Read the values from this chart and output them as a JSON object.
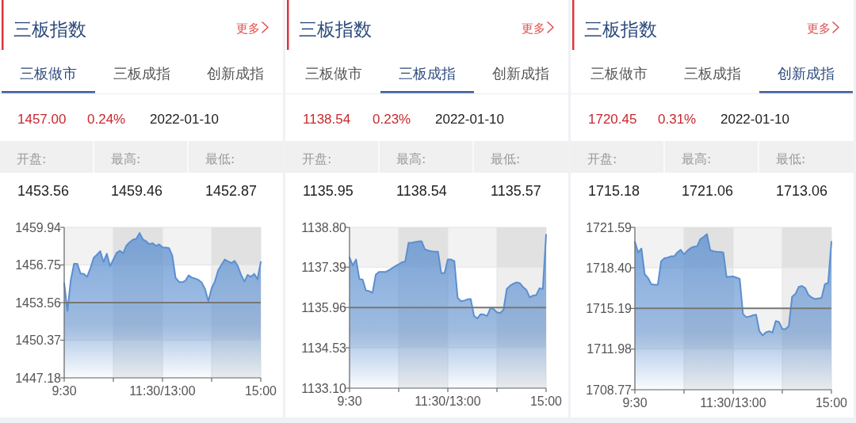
{
  "chart_data": [
    {
      "type": "area",
      "title": "三板指数",
      "annotations": [
        "更多",
        "三板做市",
        "三板成指",
        "创新成指",
        "1457.00",
        "0.24%",
        "2022-01-10",
        "开盘:",
        "最高:",
        "最低:",
        "1453.56",
        "1459.46",
        "1452.87"
      ],
      "color": "#5b8fd0",
      "grid": true,
      "categories": [
        "9:30",
        null,
        null,
        null,
        null,
        null,
        null,
        null,
        null,
        null,
        null,
        null,
        null,
        null,
        null,
        null,
        null,
        null,
        null,
        null,
        null,
        null,
        null,
        null,
        null,
        null,
        null,
        null,
        null,
        null,
        "11:30/13:00",
        null,
        null,
        null,
        null,
        null,
        null,
        null,
        null,
        null,
        null,
        null,
        null,
        null,
        null,
        null,
        null,
        null,
        null,
        null,
        null,
        null,
        null,
        null,
        null,
        null,
        null,
        null,
        null,
        null,
        "15:00"
      ],
      "ylim": [
        1447.18,
        1459.94
      ],
      "yticks": [
        1447.18,
        1450.37,
        1453.56,
        1456.75,
        1459.94
      ],
      "ref_lines": [
        {
          "axis": "y",
          "value": 1453.56,
          "color": "#777777"
        }
      ],
      "values": [
        1455.19,
        1452.87,
        1455.46,
        1456.85,
        1456.85,
        1456.02,
        1456.0,
        1455.75,
        1456.47,
        1457.35,
        1457.62,
        1457.92,
        1457.0,
        1457.7,
        1456.65,
        1457.2,
        1457.78,
        1457.95,
        1457.75,
        1458.4,
        1458.68,
        1458.9,
        1458.96,
        1459.46,
        1458.93,
        1458.76,
        1458.52,
        1458.6,
        1458.37,
        1458.5,
        1458.25,
        1458.22,
        1458.18,
        1457.55,
        1455.66,
        1455.33,
        1455.28,
        1455.42,
        1455.87,
        1455.67,
        1455.6,
        1455.48,
        1455.25,
        1454.7,
        1453.67,
        1454.79,
        1455.35,
        1456.3,
        1456.76,
        1457.21,
        1457.06,
        1456.92,
        1457.1,
        1456.65,
        1455.9,
        1455.35,
        1455.91,
        1455.75,
        1456.0,
        1455.55,
        1457
      ]
    },
    {
      "type": "area",
      "title": "三板指数",
      "annotations": [
        "更多",
        "三板做市",
        "三板成指",
        "创新成指",
        "1138.54",
        "0.23%",
        "2022-01-10",
        "开盘:",
        "最高:",
        "最低:",
        "1135.95",
        "1138.54",
        "1135.57"
      ],
      "color": "#5b8fd0",
      "grid": true,
      "categories": [
        "9:30",
        null,
        null,
        null,
        null,
        null,
        null,
        null,
        null,
        null,
        null,
        null,
        null,
        null,
        null,
        null,
        null,
        null,
        null,
        null,
        null,
        null,
        null,
        null,
        null,
        null,
        null,
        null,
        null,
        null,
        "11:30/13:00",
        null,
        null,
        null,
        null,
        null,
        null,
        null,
        null,
        null,
        null,
        null,
        null,
        null,
        null,
        null,
        null,
        null,
        null,
        null,
        null,
        null,
        null,
        null,
        null,
        null,
        null,
        null,
        null,
        null,
        "15:00"
      ],
      "ylim": [
        1133.1,
        1138.8
      ],
      "yticks": [
        {
          "value": 1133.1,
          "label": "1133.10"
        },
        1134.53,
        1135.96,
        1137.39,
        {
          "value": 1138.8,
          "label": "1138.80"
        }
      ],
      "ref_lines": [
        {
          "axis": "y",
          "value": 1135.96,
          "color": "#777777"
        }
      ],
      "values": [
        1137.73,
        1137.45,
        1137.66,
        1136.97,
        1136.95,
        1136.56,
        1136.54,
        1136.48,
        1137.12,
        1137.22,
        1137.22,
        1137.22,
        1137.28,
        1137.35,
        1137.43,
        1137.49,
        1137.56,
        1137.59,
        1138.25,
        1138.25,
        1138.28,
        1138.3,
        1138.31,
        1138.02,
        1137.98,
        1137.95,
        1137.94,
        1137.94,
        1137.18,
        1137.18,
        1137.66,
        1137.66,
        1137.6,
        1136.3,
        1136.18,
        1136.2,
        1136.25,
        1136.26,
        1135.66,
        1135.57,
        1135.72,
        1135.71,
        1135.66,
        1135.94,
        1135.9,
        1135.79,
        1135.76,
        1135.88,
        1136.62,
        1136.73,
        1136.8,
        1136.85,
        1136.82,
        1136.68,
        1136.58,
        1136.32,
        1136.38,
        1136.4,
        1136.64,
        1136.62,
        1138.54
      ]
    },
    {
      "type": "area",
      "title": "三板指数",
      "annotations": [
        "更多",
        "三板做市",
        "三板成指",
        "创新成指",
        "1720.45",
        "0.31%",
        "2022-01-10",
        "开盘:",
        "最高:",
        "最低:",
        "1715.18",
        "1721.06",
        "1713.06"
      ],
      "color": "#5b8fd0",
      "grid": true,
      "categories": [
        "9:30",
        null,
        null,
        null,
        null,
        null,
        null,
        null,
        null,
        null,
        null,
        null,
        null,
        null,
        null,
        null,
        null,
        null,
        null,
        null,
        null,
        null,
        null,
        null,
        null,
        null,
        null,
        null,
        null,
        null,
        "11:30/13:00",
        null,
        null,
        null,
        null,
        null,
        null,
        null,
        null,
        null,
        null,
        null,
        null,
        null,
        null,
        null,
        null,
        null,
        null,
        null,
        null,
        null,
        null,
        null,
        null,
        null,
        null,
        null,
        null,
        null,
        "15:00"
      ],
      "ylim": [
        1708.77,
        1721.59
      ],
      "yticks": [
        1708.77,
        1711.98,
        1715.19,
        {
          "value": 1718.4,
          "label": "1718.40"
        },
        1721.59
      ],
      "ref_lines": [
        {
          "axis": "y",
          "value": 1715.19,
          "color": "#777777"
        }
      ],
      "values": [
        1720.44,
        1719.6,
        1719.92,
        1717.9,
        1717.6,
        1717.1,
        1717.05,
        1717.05,
        1718.9,
        1719.15,
        1719.2,
        1719.3,
        1719.3,
        1719.62,
        1719.82,
        1719.45,
        1719.74,
        1719.95,
        1720.06,
        1720.1,
        1720.67,
        1720.84,
        1721.06,
        1719.8,
        1719.7,
        1719.67,
        1719.65,
        1719.61,
        1717.66,
        1717.7,
        1717.71,
        1717.62,
        1717.53,
        1714.75,
        1714.5,
        1714.55,
        1714.65,
        1714.7,
        1713.4,
        1713.06,
        1713.3,
        1713.39,
        1713.28,
        1714.2,
        1714.12,
        1713.56,
        1713.56,
        1713.8,
        1716.12,
        1716.33,
        1716.88,
        1716.96,
        1716.8,
        1716.25,
        1716.05,
        1715.93,
        1715.98,
        1716.02,
        1717.11,
        1717.2,
        1720.45
      ]
    }
  ]
}
